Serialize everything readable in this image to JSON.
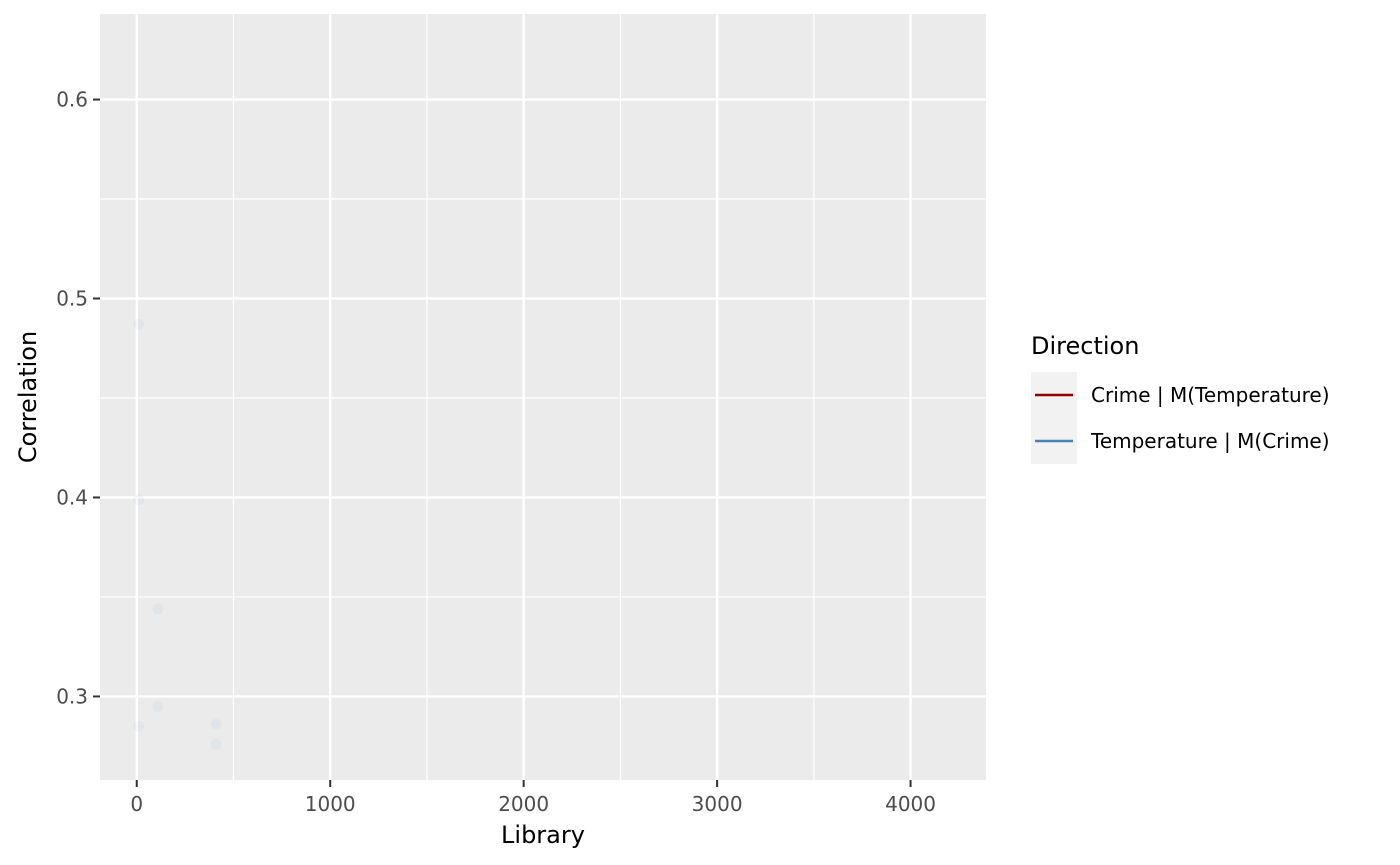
{
  "chart_data": {
    "type": "scatter",
    "title": "",
    "xlabel": "Library",
    "ylabel": "Correlation",
    "xlim": [
      -190,
      4390
    ],
    "ylim": [
      0.258,
      0.643
    ],
    "x_ticks": [
      0,
      1000,
      2000,
      3000,
      4000
    ],
    "x_tick_labels": [
      "0",
      "1000",
      "2000",
      "3000",
      "4000"
    ],
    "x_minor_ticks": [
      500,
      1500,
      2500,
      3500
    ],
    "y_ticks": [
      0.3,
      0.4,
      0.5,
      0.6
    ],
    "y_tick_labels": [
      "0.3",
      "0.4",
      "0.5",
      "0.6"
    ],
    "y_minor_ticks": [
      0.35,
      0.45,
      0.55
    ],
    "grid": true,
    "panel_background": "#ebebeb",
    "legend": {
      "title": "Direction",
      "position": "right",
      "entries": [
        {
          "label": "Crime | M(Temperature)",
          "color": "#8b0000"
        },
        {
          "label": "Temperature | M(Crime)",
          "color": "#4682b4"
        }
      ]
    },
    "series": [
      {
        "color": "#4682b4",
        "marker": "point",
        "opacity": 0.06,
        "points": [
          {
            "x": 10,
            "y": 0.487
          },
          {
            "x": 10,
            "y": 0.399
          },
          {
            "x": 10,
            "y": 0.285
          },
          {
            "x": 110,
            "y": 0.344
          },
          {
            "x": 110,
            "y": 0.295
          },
          {
            "x": 410,
            "y": 0.286
          },
          {
            "x": 410,
            "y": 0.276
          }
        ]
      }
    ]
  }
}
